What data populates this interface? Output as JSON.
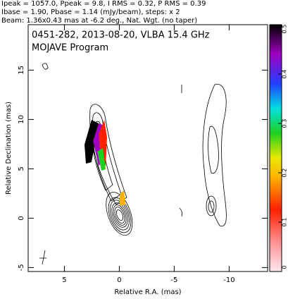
{
  "chart_data": {
    "type": "image",
    "header": [
      "Ipeak = 1057.0, Ppeak = 9.8, I RMS = 0.32, P RMS = 0.39",
      "Ibase = 1.90, Pbase = 1.14 (mJy/beam), steps: x 2",
      "Beam: 1.36x0.43 mas at -6.2 deg., Nat. Wgt. (no taper)"
    ],
    "title": "0451-282, 2013-08-20, VLBA 15.4 GHz",
    "subtitle": "MOJAVE Program",
    "xlabel": "Relative R.A. (mas)",
    "ylabel": "Relative Declination (mas)",
    "xlim": [
      8.3,
      -13.5
    ],
    "xticks": [
      5,
      0,
      -5,
      -10
    ],
    "ylim": [
      -5.4,
      19.6
    ],
    "yticks": [
      -5,
      0,
      5,
      10,
      15
    ],
    "colorbar_lim": [
      0,
      0.5
    ],
    "colorbar_ticks": [
      0,
      0.1,
      0.2,
      0.3,
      0.4,
      0.5
    ]
  }
}
